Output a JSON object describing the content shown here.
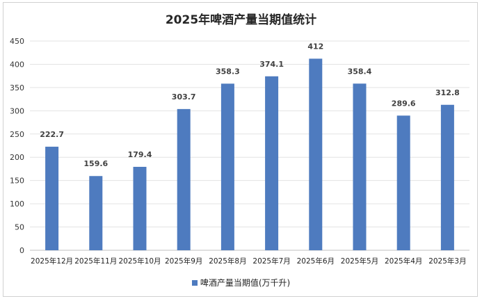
{
  "chart_data": {
    "type": "bar",
    "title": "2025年啤酒产量当期值统计",
    "categories": [
      "2025年12月",
      "2025年11月",
      "2025年10月",
      "2025年9月",
      "2025年8月",
      "2025年7月",
      "2025年6月",
      "2025年5月",
      "2025年4月",
      "2025年3月"
    ],
    "series": [
      {
        "name": "啤酒产量当期值(万千升)",
        "values": [
          222.7,
          159.6,
          179.4,
          303.7,
          358.3,
          374.1,
          412,
          358.4,
          289.6,
          312.8
        ],
        "color": "#4e7bbf"
      }
    ],
    "data_labels": [
      "222.7",
      "159.6",
      "179.4",
      "303.7",
      "358.3",
      "374.1",
      "412",
      "358.4",
      "289.6",
      "312.8"
    ],
    "ylim": [
      0,
      450
    ],
    "yticks": [
      0,
      50,
      100,
      150,
      200,
      250,
      300,
      350,
      400,
      450
    ],
    "grid": true,
    "legend_position": "bottom"
  }
}
